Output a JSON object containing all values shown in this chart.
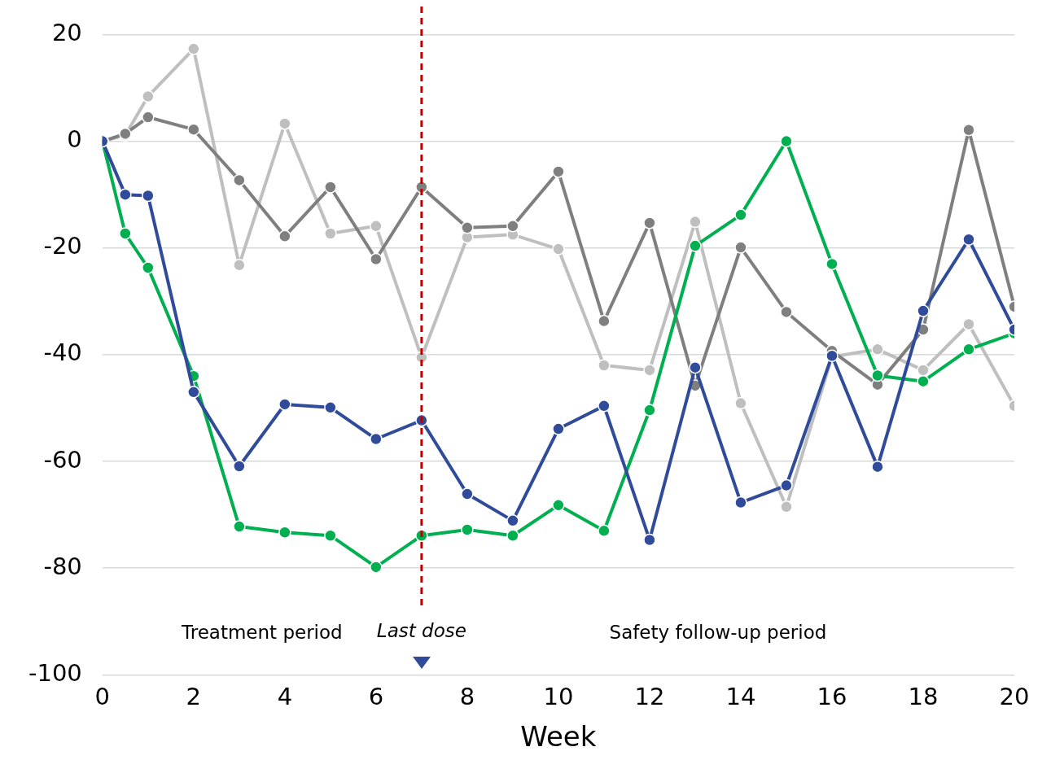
{
  "chart_data": {
    "type": "line",
    "xlabel": "Week",
    "x": [
      0,
      0.5,
      1,
      2,
      3,
      4,
      5,
      6,
      7,
      8,
      9,
      10,
      11,
      12,
      13,
      14,
      15,
      16,
      17,
      18,
      19,
      20
    ],
    "series": [
      {
        "color": "#bfbfbf",
        "values": [
          0,
          1.1,
          8.4,
          17.3,
          -23.2,
          3.3,
          -17.3,
          -15.9,
          -40.5,
          -18,
          -17.5,
          -20.2,
          -42,
          -42.9,
          -15.1,
          -49.1,
          -68.5,
          -40.4,
          -39,
          -42.9,
          -34.3,
          -49.6
        ]
      },
      {
        "color": "#7f7f7f",
        "values": [
          0,
          1.4,
          4.5,
          2.2,
          -7.3,
          -17.8,
          -8.6,
          -22.1,
          -8.6,
          -16.2,
          -15.9,
          -5.7,
          -33.7,
          -15.3,
          -45.8,
          -19.9,
          -32,
          -39.3,
          -45.6,
          -35.3,
          2.1,
          -31
        ]
      },
      {
        "color": "#00b050",
        "values": [
          0,
          -17.3,
          -23.7,
          -44,
          -72.2,
          -73.3,
          -73.9,
          -79.8,
          -73.9,
          -72.8,
          -73.9,
          -68.2,
          -73,
          -50.4,
          -19.6,
          -13.8,
          0,
          -23,
          -43.9,
          -45,
          -39,
          -36
        ]
      },
      {
        "color": "#2f4b9a",
        "values": [
          0,
          -10,
          -10.2,
          -47,
          -60.9,
          -49.3,
          -49.9,
          -55.8,
          -52.3,
          -66.1,
          -71.1,
          -53.9,
          -49.6,
          -74.7,
          -42.4,
          -67.7,
          -64.5,
          -40.2,
          -61,
          -31.8,
          -18.4,
          -35.3
        ]
      }
    ],
    "xlim": [
      0,
      20
    ],
    "xticks": [
      0,
      2,
      4,
      6,
      8,
      10,
      12,
      14,
      16,
      18,
      20
    ],
    "ylim": [
      -100,
      20
    ],
    "yticks": [
      -100,
      -80,
      -60,
      -40,
      -20,
      0,
      20
    ],
    "grid": "y",
    "legend": false,
    "marker": "circle",
    "line_style": "solid",
    "ref_lines": [
      {
        "axis": "x",
        "value": 7,
        "label": "Last dose",
        "color": "#c00000",
        "line_style": "dashed"
      }
    ],
    "annotations": [
      "Treatment period",
      "Safety follow-up period"
    ]
  }
}
